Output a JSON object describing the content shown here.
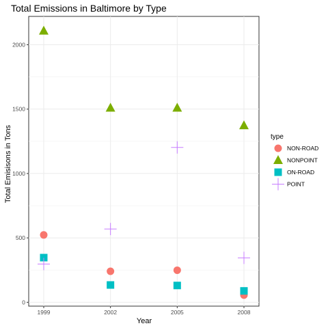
{
  "chart_data": {
    "type": "scatter",
    "title": "Total Emissions in Baltimore by Type",
    "xlabel": "Year",
    "ylabel": "Total Emisisons in Tons",
    "x": [
      "1999",
      "2002",
      "2005",
      "2008"
    ],
    "yticks": [
      0,
      500,
      1000,
      1500,
      2000
    ],
    "ylim": [
      -30,
      2220
    ],
    "grid": true,
    "legend": {
      "title": "type",
      "placement": "right"
    },
    "series": [
      {
        "name": "NON-ROAD",
        "shape": "circle",
        "color": "#F8766D",
        "values": [
          522.9,
          240.8,
          248.9,
          55.8
        ]
      },
      {
        "name": "NONPOINT",
        "shape": "triangle",
        "color": "#7CAE00",
        "values": [
          2107.6,
          1509.5,
          1509.5,
          1373.2
        ]
      },
      {
        "name": "ON-ROAD",
        "shape": "square",
        "color": "#00BFC4",
        "values": [
          346.8,
          134.3,
          130.4,
          88.3
        ]
      },
      {
        "name": "POINT",
        "shape": "cross",
        "color": "#C77CFF",
        "values": [
          296.8,
          569.3,
          1202.5,
          344.98
        ]
      }
    ]
  }
}
